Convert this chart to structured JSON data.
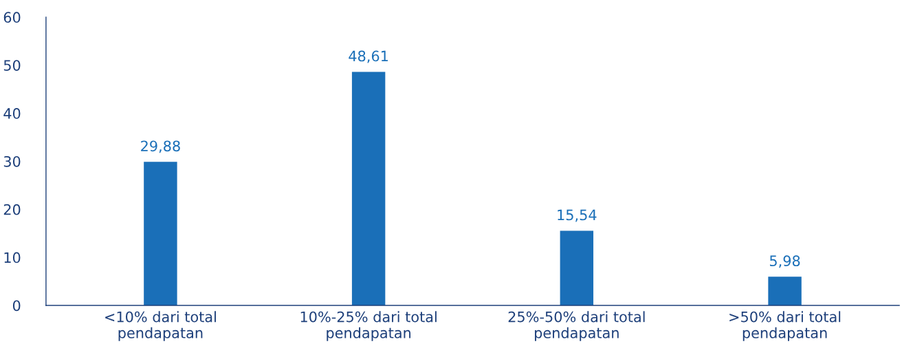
{
  "chart_data": {
    "type": "bar",
    "categories": [
      "<10% dari total\npendapatan",
      "10%-25% dari total\npendapatan",
      "25%-50% dari total\npendapatan",
      ">50% dari total\npendapatan"
    ],
    "values": [
      29.88,
      48.61,
      15.54,
      5.98
    ],
    "value_labels": [
      "29,88",
      "48,61",
      "15,54",
      "5,98"
    ],
    "color": "#1a6fb8",
    "ylim": [
      0,
      60
    ],
    "yticks": [
      0,
      10,
      20,
      30,
      40,
      50,
      60
    ],
    "grid": false,
    "legend": false
  }
}
